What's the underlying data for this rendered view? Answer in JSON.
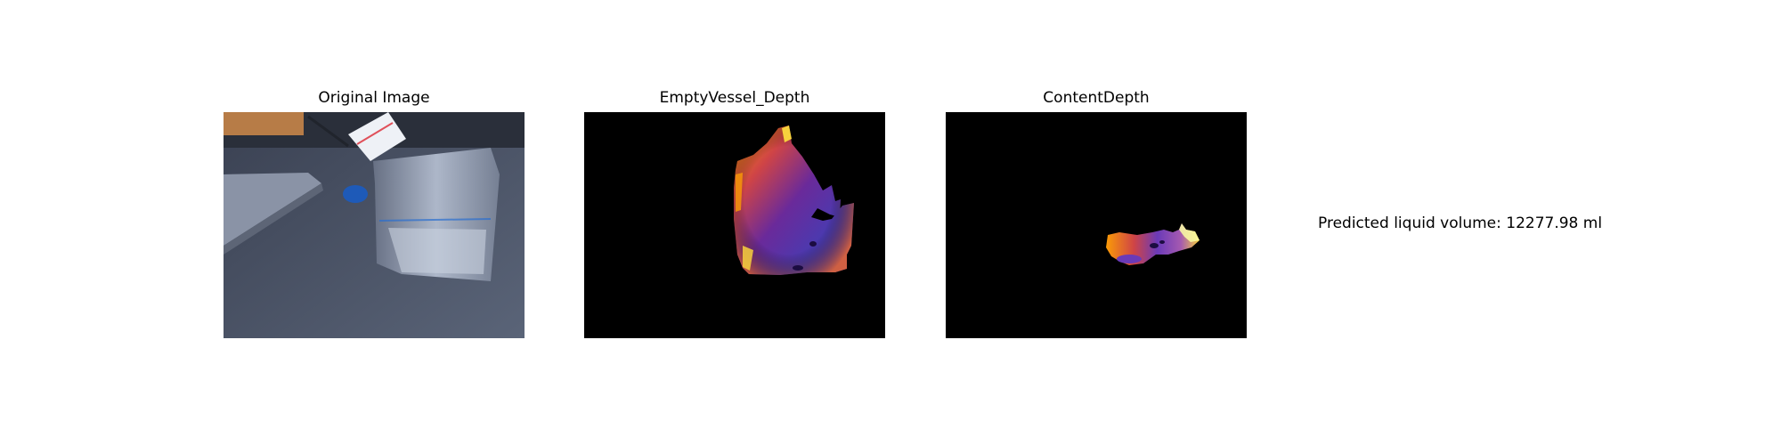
{
  "panels": {
    "original": {
      "title": "Original Image"
    },
    "empty_vessel": {
      "title": "EmptyVessel_Depth"
    },
    "content": {
      "title": "ContentDepth"
    }
  },
  "result": {
    "text": "Predicted liquid volume: 12277.98 ml"
  },
  "colors": {
    "background": "#ffffff",
    "depth_background": "#000000",
    "depth_colormap": [
      "#1b0c41",
      "#4a0c6b",
      "#781c6d",
      "#a52c60",
      "#cf4446",
      "#ed6925",
      "#fb9b06",
      "#f7d13d",
      "#fcffa4"
    ]
  }
}
